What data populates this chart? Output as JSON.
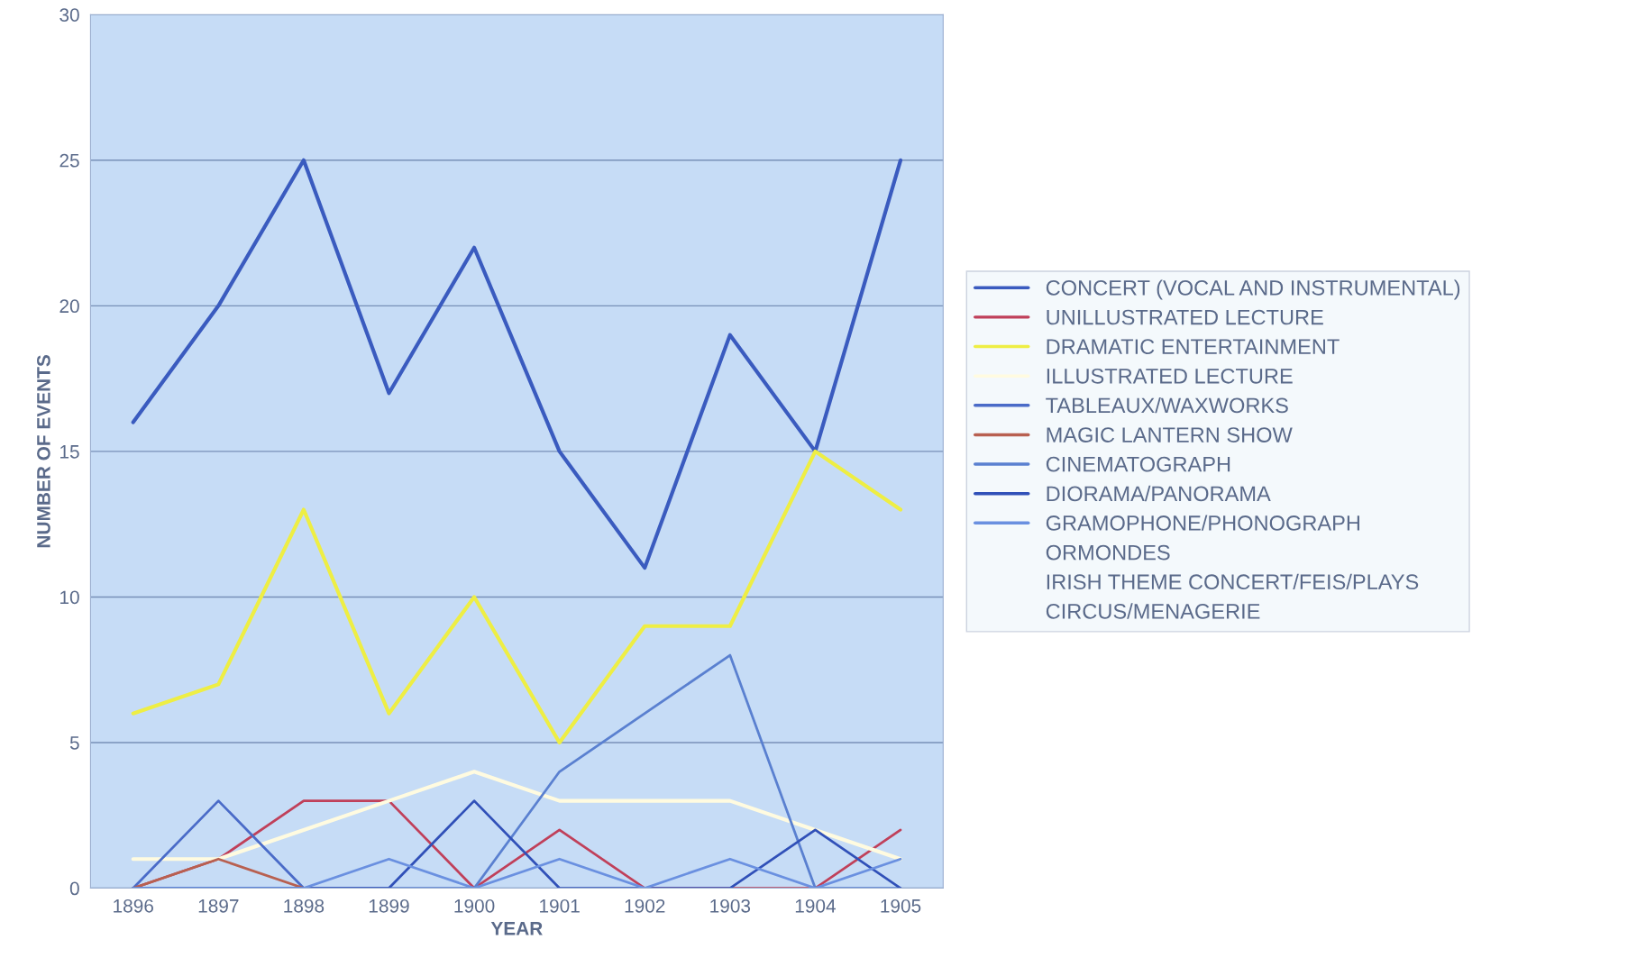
{
  "chart_data": {
    "type": "line",
    "xlabel": "YEAR",
    "ylabel": "NUMBER OF EVENTS",
    "categories": [
      "1896",
      "1897",
      "1898",
      "1899",
      "1900",
      "1901",
      "1902",
      "1903",
      "1904",
      "1905"
    ],
    "ylim": [
      0,
      30
    ],
    "yticks": [
      0,
      5,
      10,
      15,
      20,
      25,
      30
    ],
    "grid": "y",
    "legend": "right",
    "marker": "none",
    "line_style": "solid",
    "series": [
      {
        "name": "CONCERT (VOCAL AND INSTRUMENTAL)",
        "color": "#3a5bbf",
        "values": [
          16,
          20,
          25,
          17,
          22,
          15,
          11,
          19,
          15,
          25
        ]
      },
      {
        "name": "UNILLUSTRATED LECTURE",
        "color": "#c0405a",
        "values": [
          0,
          1,
          3,
          3,
          0,
          2,
          0,
          0,
          0,
          2
        ]
      },
      {
        "name": "DRAMATIC ENTERTAINMENT",
        "color": "#eeee44",
        "values": [
          6,
          7,
          13,
          6,
          10,
          5,
          9,
          9,
          15,
          13
        ]
      },
      {
        "name": "ILLUSTRATED LECTURE",
        "color": "#fffbe0",
        "values": [
          1,
          1,
          2,
          3,
          4,
          3,
          3,
          3,
          2,
          1
        ]
      },
      {
        "name": "TABLEAUX/WAXWORKS",
        "color": "#4a6bc8",
        "values": [
          0,
          3,
          0,
          null,
          null,
          null,
          null,
          null,
          null,
          null
        ]
      },
      {
        "name": "MAGIC LANTERN SHOW",
        "color": "#b86050",
        "values": [
          0,
          1,
          0,
          null,
          null,
          null,
          null,
          null,
          null,
          null
        ]
      },
      {
        "name": "CINEMATOGRAPH",
        "color": "#5a80d0",
        "values": [
          0,
          0,
          0,
          0,
          0,
          4,
          6,
          8,
          0,
          0
        ]
      },
      {
        "name": "DIORAMA/PANORAMA",
        "color": "#3050b8",
        "values": [
          0,
          0,
          0,
          0,
          3,
          0,
          0,
          0,
          2,
          0
        ]
      },
      {
        "name": "GRAMOPHONE/PHONOGRAPH",
        "color": "#6a90e0",
        "values": [
          0,
          0,
          0,
          1,
          0,
          1,
          0,
          1,
          0,
          1
        ]
      },
      {
        "name": "ORMONDES",
        "color": null,
        "values": [
          null,
          null,
          null,
          null,
          null,
          null,
          null,
          null,
          null,
          null
        ]
      },
      {
        "name": "IRISH THEME CONCERT/FEIS/PLAYS",
        "color": null,
        "values": [
          null,
          null,
          null,
          null,
          null,
          null,
          null,
          null,
          null,
          null
        ]
      },
      {
        "name": "CIRCUS/MENAGERIE",
        "color": null,
        "values": [
          null,
          null,
          null,
          null,
          null,
          null,
          null,
          null,
          null,
          null
        ]
      }
    ]
  }
}
